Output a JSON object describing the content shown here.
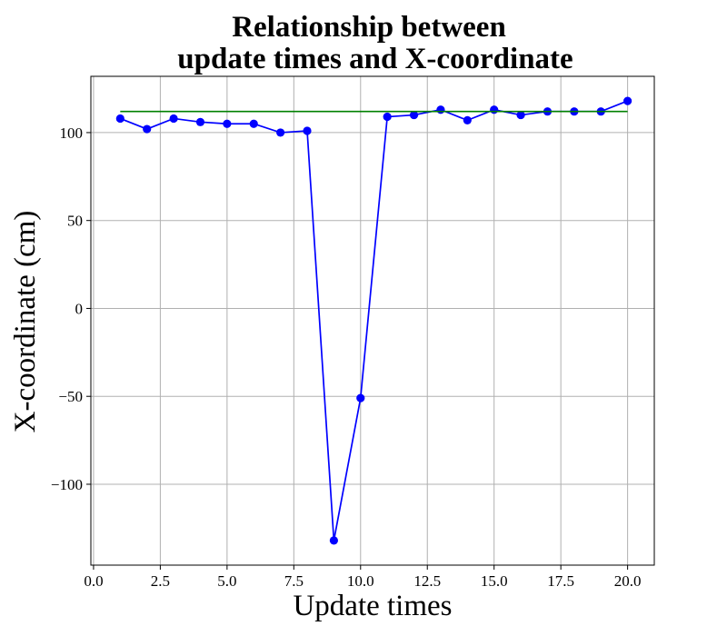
{
  "chart_data": {
    "type": "line",
    "title_lines": [
      "Relationship between",
      "update times and X-coordinate"
    ],
    "xlabel": "Update times",
    "ylabel": "X-coordinate (cm)",
    "xlim": [
      -0.1,
      21.0
    ],
    "ylim": [
      -146,
      132
    ],
    "xticks": [
      0.0,
      2.5,
      5.0,
      7.5,
      10.0,
      12.5,
      15.0,
      17.5,
      20.0
    ],
    "xtick_labels": [
      "0.0",
      "2.5",
      "5.0",
      "7.5",
      "10.0",
      "12.5",
      "15.0",
      "17.5",
      "20.0"
    ],
    "yticks": [
      100,
      50,
      0,
      -50,
      -100
    ],
    "ytick_labels": [
      "100",
      "50",
      "0",
      "−50",
      "−100"
    ],
    "grid": true,
    "series": [
      {
        "color": "#0000ff",
        "marker": "circle",
        "x": [
          1,
          2,
          3,
          4,
          5,
          6,
          7,
          8,
          9,
          10,
          11,
          12,
          13,
          14,
          15,
          16,
          17,
          18,
          19,
          20
        ],
        "y": [
          108,
          102,
          108,
          106,
          105,
          105,
          100,
          101,
          -132,
          -51,
          109,
          110,
          113,
          107,
          113,
          110,
          112,
          112,
          112,
          118
        ]
      },
      {
        "color": "#008000",
        "marker": "none",
        "x": [
          1,
          20
        ],
        "y": [
          112,
          112
        ]
      }
    ]
  }
}
